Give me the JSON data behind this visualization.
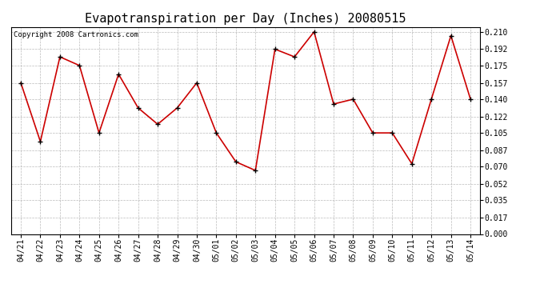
{
  "title": "Evapotranspiration per Day (Inches) 20080515",
  "copyright_text": "Copyright 2008 Cartronics.com",
  "dates": [
    "04/21",
    "04/22",
    "04/23",
    "04/24",
    "04/25",
    "04/26",
    "04/27",
    "04/28",
    "04/29",
    "04/30",
    "05/01",
    "05/02",
    "05/03",
    "05/04",
    "05/05",
    "05/06",
    "05/07",
    "05/08",
    "05/09",
    "05/10",
    "05/11",
    "05/12",
    "05/13",
    "05/14"
  ],
  "values": [
    0.157,
    0.096,
    0.184,
    0.175,
    0.105,
    0.166,
    0.131,
    0.114,
    0.131,
    0.157,
    0.105,
    0.075,
    0.066,
    0.192,
    0.184,
    0.21,
    0.135,
    0.14,
    0.105,
    0.105,
    0.073,
    0.14,
    0.206,
    0.14
  ],
  "yticks": [
    0.0,
    0.017,
    0.035,
    0.052,
    0.07,
    0.087,
    0.105,
    0.122,
    0.14,
    0.157,
    0.175,
    0.192,
    0.21
  ],
  "ylim": [
    0.0,
    0.215
  ],
  "line_color": "#cc0000",
  "marker": "+",
  "marker_size": 5,
  "marker_color": "#000000",
  "background_color": "#ffffff",
  "plot_bg_color": "#ffffff",
  "grid_color": "#aaaaaa",
  "title_fontsize": 11,
  "tick_fontsize": 7,
  "copyright_fontsize": 6.5
}
